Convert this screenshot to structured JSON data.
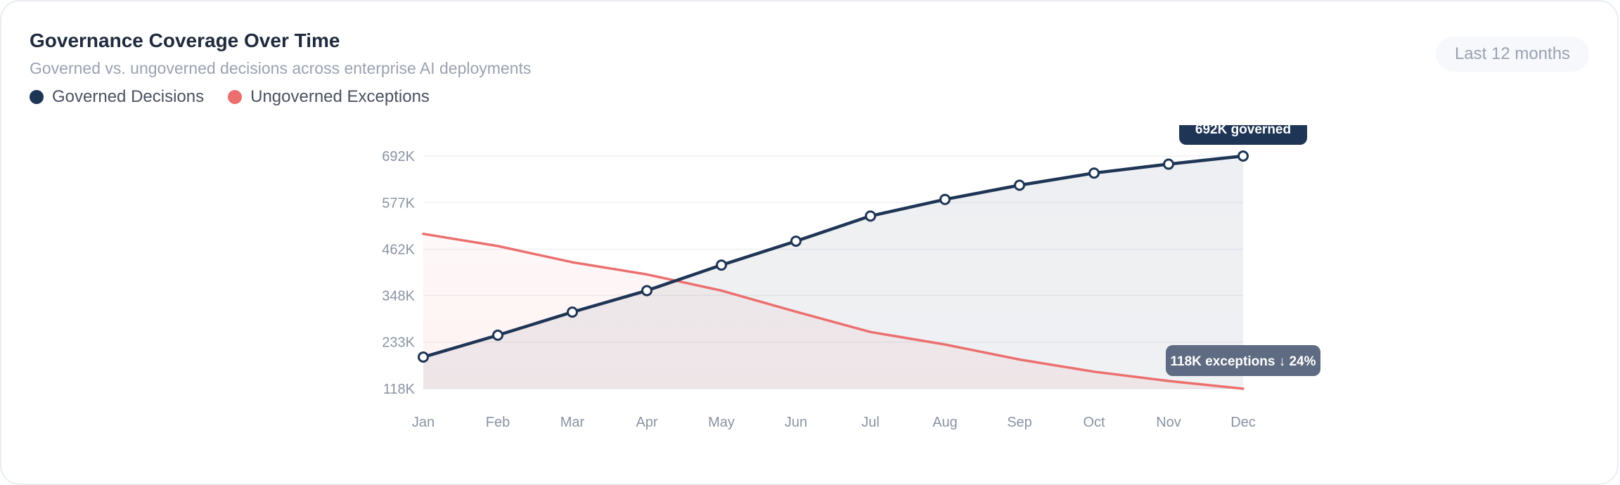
{
  "header": {
    "title": "Governance Coverage Over Time",
    "subtitle": "Governed vs. ungoverned decisions across enterprise AI deployments",
    "range_label": "Last 12 months"
  },
  "legend": {
    "items": [
      {
        "label": "Governed Decisions",
        "color": "#1f3556"
      },
      {
        "label": "Ungoverned Exceptions",
        "color": "#ec6f6f"
      }
    ]
  },
  "chart_data": {
    "type": "line",
    "x": [
      "Jan",
      "Feb",
      "Mar",
      "Apr",
      "May",
      "Jun",
      "Jul",
      "Aug",
      "Sep",
      "Oct",
      "Nov",
      "Dec"
    ],
    "series": [
      {
        "name": "Governed Decisions",
        "color": "#1f3556",
        "values": [
          196,
          250,
          307,
          360,
          423,
          482,
          544,
          585,
          620,
          650,
          672,
          692
        ]
      },
      {
        "name": "Ungoverned Exceptions",
        "color": "#ec6f6f",
        "values": [
          500,
          470,
          430,
          400,
          360,
          308,
          258,
          227,
          190,
          160,
          137,
          118
        ]
      }
    ],
    "yticks": [
      "118K",
      "233K",
      "348K",
      "462K",
      "577K",
      "692K"
    ],
    "ytick_values": [
      118,
      233,
      348,
      462,
      577,
      692
    ],
    "ylim": [
      118,
      692
    ],
    "units": "K",
    "grid": true,
    "annotations": [
      {
        "text": "692K governed",
        "series": 0,
        "index": 11
      },
      {
        "text": "118K exceptions ↓ 24%",
        "series": 1,
        "index": 11
      }
    ]
  }
}
